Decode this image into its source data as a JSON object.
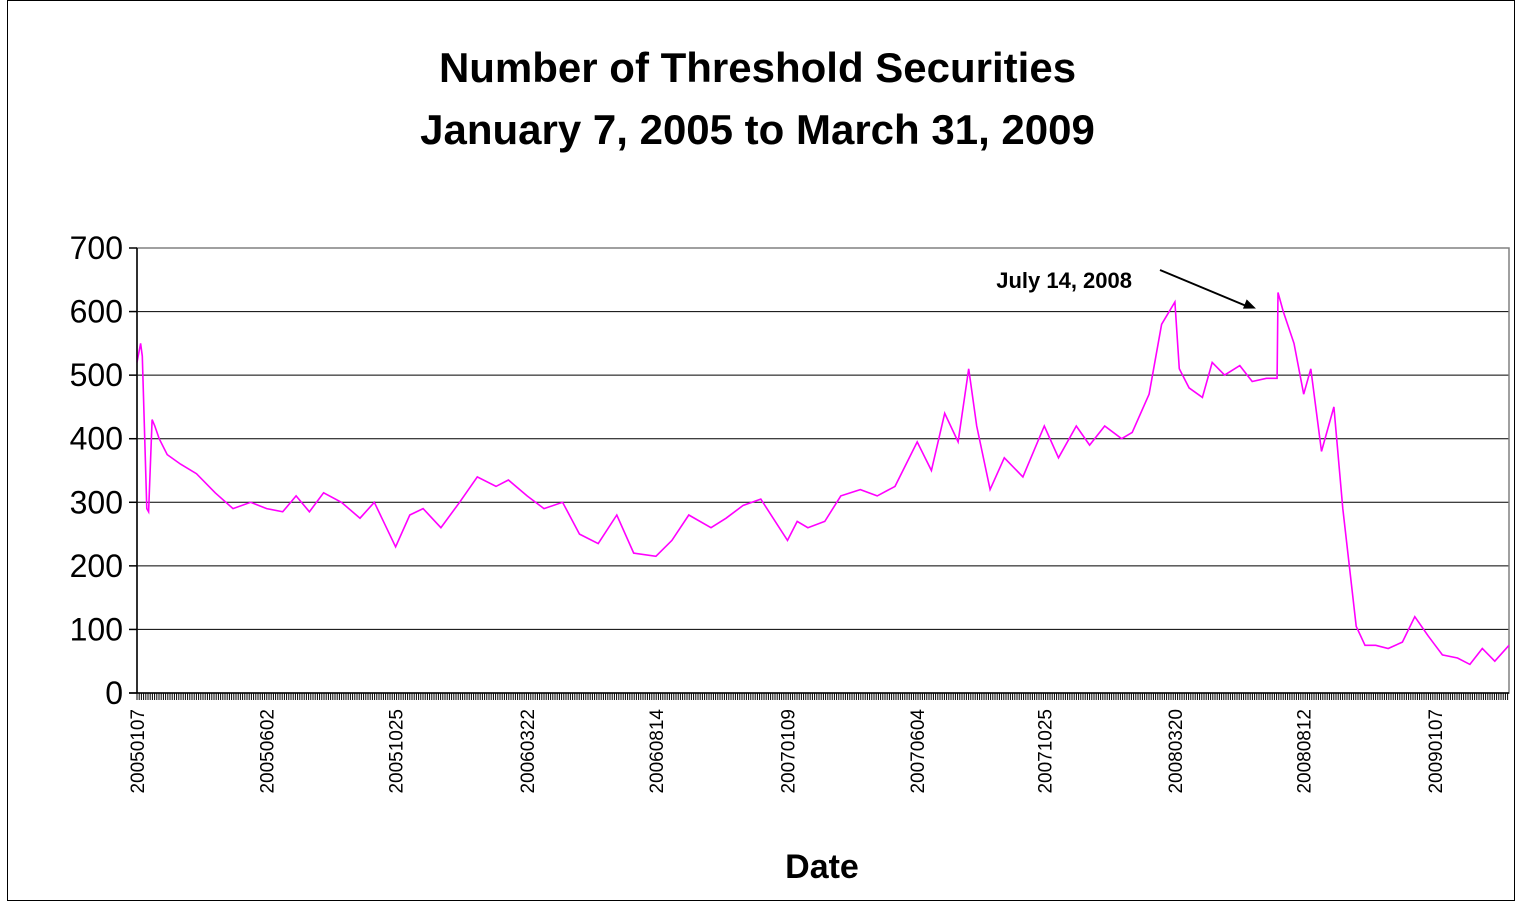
{
  "chart_data": {
    "type": "line",
    "title": "Number of Threshold Securities",
    "subtitle": "January 7, 2005 to March 31, 2009",
    "xlabel": "Date",
    "ylabel": "",
    "ylim": [
      0,
      700
    ],
    "yticks": [
      "0",
      "100",
      "200",
      "300",
      "400",
      "500",
      "600",
      "700"
    ],
    "xticks": [
      "20050107",
      "20050602",
      "20051025",
      "20060322",
      "20060814",
      "20070109",
      "20070604",
      "20071025",
      "20080320",
      "20080812",
      "20090107"
    ],
    "grid": "horizontal",
    "legend": "none",
    "line_color": "#ff00ff",
    "annotation": {
      "text": "July 14, 2008",
      "x": "20080714",
      "y": 630
    },
    "series": [
      {
        "x": [
          "20050107",
          "20050111",
          "20050113",
          "20050118",
          "20050120",
          "20050124",
          "20050127",
          "20050201",
          "20050210",
          "20050225",
          "20050315",
          "20050405",
          "20050425",
          "20050515",
          "20050602",
          "20050620",
          "20050705",
          "20050720",
          "20050805",
          "20050825",
          "20050915",
          "20051001",
          "20051025",
          "20051110",
          "20051125",
          "20051215",
          "20060105",
          "20060125",
          "20060215",
          "20060301",
          "20060322",
          "20060410",
          "20060501",
          "20060520",
          "20060610",
          "20060701",
          "20060720",
          "20060814",
          "20060901",
          "20060920",
          "20061015",
          "20061101",
          "20061120",
          "20061210",
          "20070109",
          "20070120",
          "20070201",
          "20070220",
          "20070310",
          "20070401",
          "20070420",
          "20070510",
          "20070604",
          "20070620",
          "20070705",
          "20070720",
          "20070801",
          "20070810",
          "20070825",
          "20070910",
          "20071001",
          "20071025",
          "20071110",
          "20071130",
          "20071215",
          "20080101",
          "20080120",
          "20080201",
          "20080220",
          "20080305",
          "20080320",
          "20080325",
          "20080405",
          "20080420",
          "20080501",
          "20080515",
          "20080601",
          "20080615",
          "20080701",
          "20080713",
          "20080714",
          "20080720",
          "20080801",
          "20080812",
          "20080820",
          "20080901",
          "20080915",
          "20080925",
          "20081010",
          "20081020",
          "20081101",
          "20081115",
          "20081201",
          "20081215",
          "20081230",
          "20090107",
          "20090115",
          "20090201",
          "20090215",
          "20090301",
          "20090315",
          "20090331"
        ],
        "values": [
          520,
          550,
          530,
          290,
          285,
          430,
          420,
          400,
          375,
          360,
          345,
          315,
          290,
          300,
          290,
          285,
          310,
          285,
          315,
          300,
          275,
          300,
          230,
          280,
          290,
          260,
          300,
          340,
          325,
          335,
          310,
          290,
          300,
          250,
          235,
          280,
          220,
          215,
          240,
          280,
          260,
          275,
          295,
          305,
          240,
          270,
          260,
          270,
          310,
          320,
          310,
          325,
          395,
          350,
          440,
          395,
          510,
          420,
          320,
          370,
          340,
          420,
          370,
          420,
          390,
          420,
          400,
          410,
          470,
          580,
          615,
          510,
          480,
          465,
          520,
          500,
          515,
          490,
          495,
          495,
          630,
          600,
          550,
          470,
          510,
          380,
          450,
          290,
          105,
          75,
          75,
          70,
          80,
          120,
          90,
          75,
          60,
          55,
          45,
          70,
          50,
          75
        ]
      }
    ]
  }
}
